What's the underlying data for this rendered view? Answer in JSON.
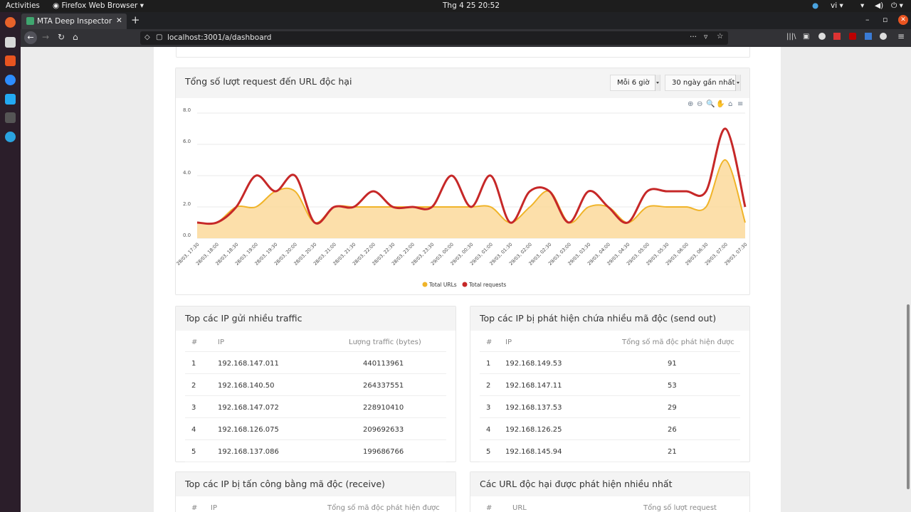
{
  "system": {
    "activities": "Activities",
    "app": "Firefox Web Browser",
    "clock": "Thg 4 25  20:52",
    "lang": "vi"
  },
  "browser": {
    "tab_title": "MTA Deep Inspector",
    "url": "localhost:3001/a/dashboard"
  },
  "traffic_chart": {
    "title": "Tổng số lượt request đến URL độc hại",
    "interval": "Mỗi 6 giờ",
    "range": "30 ngày gần nhất"
  },
  "chart_data": {
    "type": "line",
    "x": [
      "28/03, 17:30",
      "28/03, 18:00",
      "28/03, 18:30",
      "28/03, 19:00",
      "28/03, 19:30",
      "28/03, 20:00",
      "28/03, 20:30",
      "28/03, 21:00",
      "28/03, 21:30",
      "28/03, 22:00",
      "28/03, 22:30",
      "28/03, 23:00",
      "28/03, 23:30",
      "29/03, 00:00",
      "29/03, 00:30",
      "29/03, 01:00",
      "29/03, 01:30",
      "29/03, 02:00",
      "29/03, 02:30",
      "29/03, 03:00",
      "29/03, 03:30",
      "29/03, 04:00",
      "29/03, 04:30",
      "29/03, 05:00",
      "29/03, 05:30",
      "29/03, 06:00",
      "29/03, 06:30",
      "29/03, 07:00",
      "29/03, 07:30"
    ],
    "series": [
      {
        "name": "Total URLs",
        "color": "#f0b429",
        "values": [
          1,
          1,
          2,
          2,
          3,
          3,
          1,
          2,
          2,
          2,
          2,
          2,
          2,
          2,
          2,
          2,
          1,
          2,
          3,
          1,
          2,
          2,
          1,
          2,
          2,
          2,
          2,
          5,
          1
        ]
      },
      {
        "name": "Total requests",
        "color": "#c62828",
        "values": [
          1,
          1,
          2,
          4,
          3,
          4,
          1,
          2,
          2,
          3,
          2,
          2,
          2,
          4,
          2,
          4,
          1,
          3,
          3,
          1,
          3,
          2,
          1,
          3,
          3,
          3,
          3,
          7,
          2
        ]
      }
    ],
    "yticks": [
      "0.0",
      "2.0",
      "4.0",
      "6.0",
      "8.0"
    ],
    "ylim": [
      0,
      8
    ],
    "grid": true,
    "legend": "bottom-center"
  },
  "top_traffic": {
    "title": "Top các IP gửi nhiều traffic",
    "cols": [
      "#",
      "IP",
      "Lượng traffic (bytes)"
    ],
    "rows": [
      [
        "1",
        "192.168.147.011",
        "440113961"
      ],
      [
        "2",
        "192.168.140.50",
        "264337551"
      ],
      [
        "3",
        "192.168.147.072",
        "228910410"
      ],
      [
        "4",
        "192.168.126.075",
        "209692633"
      ],
      [
        "5",
        "192.168.137.086",
        "199686766"
      ]
    ]
  },
  "top_send": {
    "title": "Top các IP bị phát hiện chứa nhiều mã độc (send out)",
    "cols": [
      "#",
      "IP",
      "Tổng số mã độc phát hiện được"
    ],
    "rows": [
      [
        "1",
        "192.168.149.53",
        "91"
      ],
      [
        "2",
        "192.168.147.11",
        "53"
      ],
      [
        "3",
        "192.168.137.53",
        "29"
      ],
      [
        "4",
        "192.168.126.25",
        "26"
      ],
      [
        "5",
        "192.168.145.94",
        "21"
      ]
    ]
  },
  "top_receive": {
    "title": "Top các IP bị tấn công bằng mã độc (receive)",
    "cols": [
      "#",
      "IP",
      "Tổng số mã độc phát hiện được"
    ]
  },
  "top_urls": {
    "title": "Các URL độc hại được phát hiện nhiều nhất",
    "cols": [
      "#",
      "URL",
      "Tổng số lượt request"
    ]
  }
}
